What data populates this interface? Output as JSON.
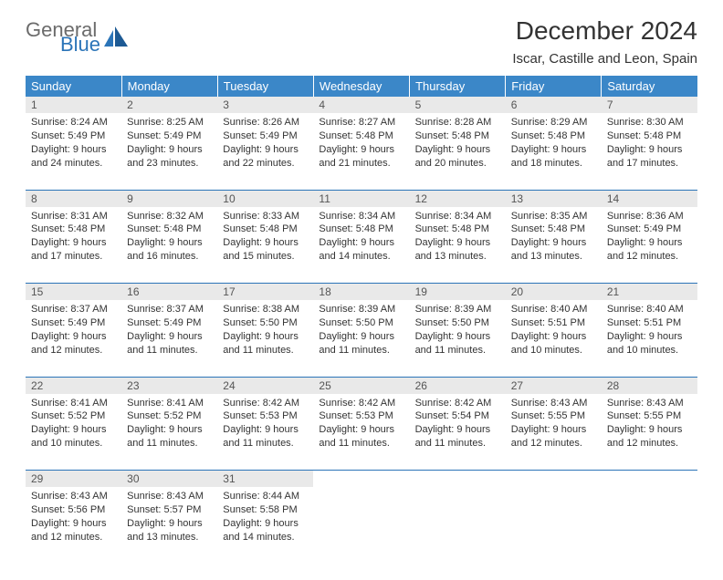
{
  "logo": {
    "general": "General",
    "blue": "Blue"
  },
  "title": "December 2024",
  "location": "Iscar, Castille and Leon, Spain",
  "colors": {
    "header_bg": "#3b87c8",
    "header_text": "#ffffff",
    "daynum_bg": "#e9e9e9",
    "border": "#2b74b8",
    "logo_gray": "#6b6b6b",
    "logo_blue": "#2b74b8"
  },
  "weekdays": [
    "Sunday",
    "Monday",
    "Tuesday",
    "Wednesday",
    "Thursday",
    "Friday",
    "Saturday"
  ],
  "weeks": [
    [
      {
        "n": "1",
        "sr": "8:24 AM",
        "ss": "5:49 PM",
        "dl": "9 hours and 24 minutes."
      },
      {
        "n": "2",
        "sr": "8:25 AM",
        "ss": "5:49 PM",
        "dl": "9 hours and 23 minutes."
      },
      {
        "n": "3",
        "sr": "8:26 AM",
        "ss": "5:49 PM",
        "dl": "9 hours and 22 minutes."
      },
      {
        "n": "4",
        "sr": "8:27 AM",
        "ss": "5:48 PM",
        "dl": "9 hours and 21 minutes."
      },
      {
        "n": "5",
        "sr": "8:28 AM",
        "ss": "5:48 PM",
        "dl": "9 hours and 20 minutes."
      },
      {
        "n": "6",
        "sr": "8:29 AM",
        "ss": "5:48 PM",
        "dl": "9 hours and 18 minutes."
      },
      {
        "n": "7",
        "sr": "8:30 AM",
        "ss": "5:48 PM",
        "dl": "9 hours and 17 minutes."
      }
    ],
    [
      {
        "n": "8",
        "sr": "8:31 AM",
        "ss": "5:48 PM",
        "dl": "9 hours and 17 minutes."
      },
      {
        "n": "9",
        "sr": "8:32 AM",
        "ss": "5:48 PM",
        "dl": "9 hours and 16 minutes."
      },
      {
        "n": "10",
        "sr": "8:33 AM",
        "ss": "5:48 PM",
        "dl": "9 hours and 15 minutes."
      },
      {
        "n": "11",
        "sr": "8:34 AM",
        "ss": "5:48 PM",
        "dl": "9 hours and 14 minutes."
      },
      {
        "n": "12",
        "sr": "8:34 AM",
        "ss": "5:48 PM",
        "dl": "9 hours and 13 minutes."
      },
      {
        "n": "13",
        "sr": "8:35 AM",
        "ss": "5:48 PM",
        "dl": "9 hours and 13 minutes."
      },
      {
        "n": "14",
        "sr": "8:36 AM",
        "ss": "5:49 PM",
        "dl": "9 hours and 12 minutes."
      }
    ],
    [
      {
        "n": "15",
        "sr": "8:37 AM",
        "ss": "5:49 PM",
        "dl": "9 hours and 12 minutes."
      },
      {
        "n": "16",
        "sr": "8:37 AM",
        "ss": "5:49 PM",
        "dl": "9 hours and 11 minutes."
      },
      {
        "n": "17",
        "sr": "8:38 AM",
        "ss": "5:50 PM",
        "dl": "9 hours and 11 minutes."
      },
      {
        "n": "18",
        "sr": "8:39 AM",
        "ss": "5:50 PM",
        "dl": "9 hours and 11 minutes."
      },
      {
        "n": "19",
        "sr": "8:39 AM",
        "ss": "5:50 PM",
        "dl": "9 hours and 11 minutes."
      },
      {
        "n": "20",
        "sr": "8:40 AM",
        "ss": "5:51 PM",
        "dl": "9 hours and 10 minutes."
      },
      {
        "n": "21",
        "sr": "8:40 AM",
        "ss": "5:51 PM",
        "dl": "9 hours and 10 minutes."
      }
    ],
    [
      {
        "n": "22",
        "sr": "8:41 AM",
        "ss": "5:52 PM",
        "dl": "9 hours and 10 minutes."
      },
      {
        "n": "23",
        "sr": "8:41 AM",
        "ss": "5:52 PM",
        "dl": "9 hours and 11 minutes."
      },
      {
        "n": "24",
        "sr": "8:42 AM",
        "ss": "5:53 PM",
        "dl": "9 hours and 11 minutes."
      },
      {
        "n": "25",
        "sr": "8:42 AM",
        "ss": "5:53 PM",
        "dl": "9 hours and 11 minutes."
      },
      {
        "n": "26",
        "sr": "8:42 AM",
        "ss": "5:54 PM",
        "dl": "9 hours and 11 minutes."
      },
      {
        "n": "27",
        "sr": "8:43 AM",
        "ss": "5:55 PM",
        "dl": "9 hours and 12 minutes."
      },
      {
        "n": "28",
        "sr": "8:43 AM",
        "ss": "5:55 PM",
        "dl": "9 hours and 12 minutes."
      }
    ],
    [
      {
        "n": "29",
        "sr": "8:43 AM",
        "ss": "5:56 PM",
        "dl": "9 hours and 12 minutes."
      },
      {
        "n": "30",
        "sr": "8:43 AM",
        "ss": "5:57 PM",
        "dl": "9 hours and 13 minutes."
      },
      {
        "n": "31",
        "sr": "8:44 AM",
        "ss": "5:58 PM",
        "dl": "9 hours and 14 minutes."
      },
      null,
      null,
      null,
      null
    ]
  ],
  "labels": {
    "sunrise": "Sunrise:",
    "sunset": "Sunset:",
    "daylight": "Daylight:"
  }
}
